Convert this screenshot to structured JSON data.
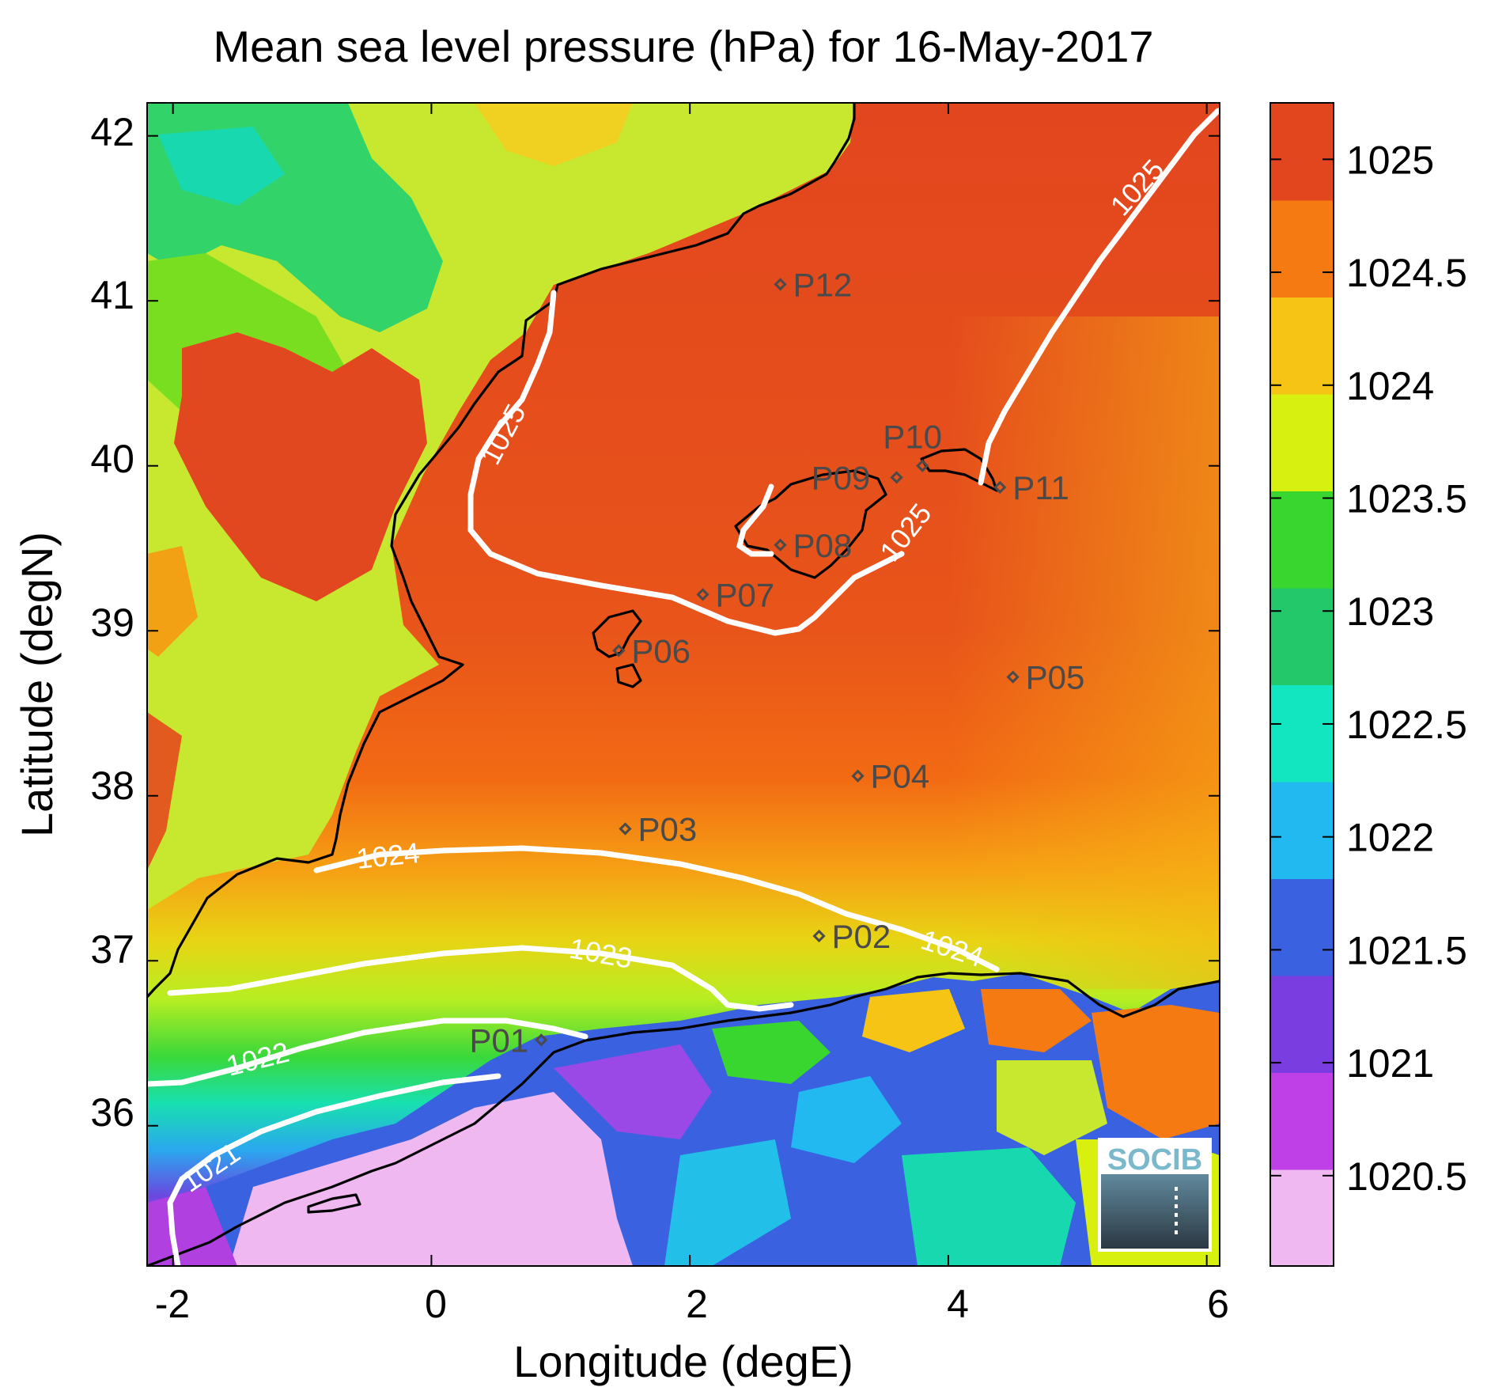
{
  "title": "Mean sea level pressure (hPa) for 16-May-2017",
  "x_axis": {
    "label": "Longitude (degE)",
    "ticks": [
      "-2",
      "0",
      "2",
      "4",
      "6"
    ]
  },
  "y_axis": {
    "label": "Latitude (degN)",
    "ticks": [
      "42",
      "41",
      "40",
      "39",
      "38",
      "37",
      "36"
    ]
  },
  "colorbar": {
    "ticks": [
      "1025",
      "1024.5",
      "1024",
      "1023.5",
      "1023",
      "1022.5",
      "1022",
      "1021.5",
      "1021",
      "1020.5"
    ],
    "colors": [
      "#f0b8f0",
      "#c040e8",
      "#7a3de0",
      "#3a62e0",
      "#22b8f0",
      "#12e6c0",
      "#22c86a",
      "#38d62e",
      "#d8f010",
      "#f6c414",
      "#f67a12",
      "#e2461e"
    ]
  },
  "contours": [
    {
      "level": "1025",
      "label": "1025"
    },
    {
      "level": "1024",
      "label": "1024"
    },
    {
      "level": "1023",
      "label": "1023"
    },
    {
      "level": "1022",
      "label": "1022"
    },
    {
      "level": "1021",
      "label": "1021"
    }
  ],
  "stations": [
    {
      "id": "P01",
      "lon": 0.85,
      "lat": 36.52
    },
    {
      "id": "P02",
      "lon": 3.0,
      "lat": 37.15
    },
    {
      "id": "P03",
      "lon": 1.5,
      "lat": 37.8
    },
    {
      "id": "P04",
      "lon": 3.3,
      "lat": 38.12
    },
    {
      "id": "P05",
      "lon": 4.5,
      "lat": 38.72
    },
    {
      "id": "P06",
      "lon": 1.45,
      "lat": 38.88
    },
    {
      "id": "P07",
      "lon": 2.1,
      "lat": 39.22
    },
    {
      "id": "P08",
      "lon": 2.7,
      "lat": 39.52
    },
    {
      "id": "P09",
      "lon": 3.6,
      "lat": 39.93
    },
    {
      "id": "P10",
      "lon": 3.8,
      "lat": 40.0
    },
    {
      "id": "P11",
      "lon": 4.4,
      "lat": 39.87
    },
    {
      "id": "P12",
      "lon": 2.7,
      "lat": 41.1
    }
  ],
  "logo": {
    "text": "SOCIB"
  }
}
